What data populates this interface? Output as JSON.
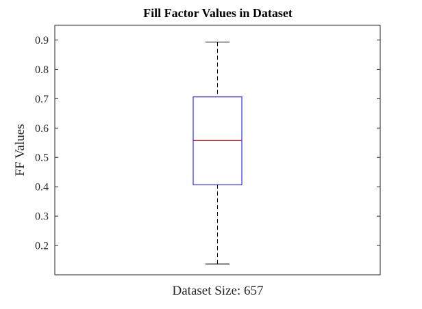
{
  "chart_data": {
    "type": "box",
    "title": "Fill Factor Values in Dataset",
    "xlabel": "Dataset Size: 657",
    "ylabel": "FF Values",
    "ylim": [
      0.1,
      0.95
    ],
    "yticks": [
      0.2,
      0.3,
      0.4,
      0.5,
      0.6,
      0.7,
      0.8,
      0.9
    ],
    "ytick_labels": [
      "0.2",
      "0.3",
      "0.4",
      "0.5",
      "0.6",
      "0.7",
      "0.8",
      "0.9"
    ],
    "grid": false,
    "legend": "none",
    "series": [
      {
        "whisker_low": 0.137,
        "q1": 0.407,
        "median": 0.558,
        "q3": 0.706,
        "whisker_high": 0.893
      }
    ],
    "colors": {
      "box": "#0000ff",
      "median": "#ff0000",
      "whisker": "#000000",
      "axes": "#262626"
    }
  }
}
